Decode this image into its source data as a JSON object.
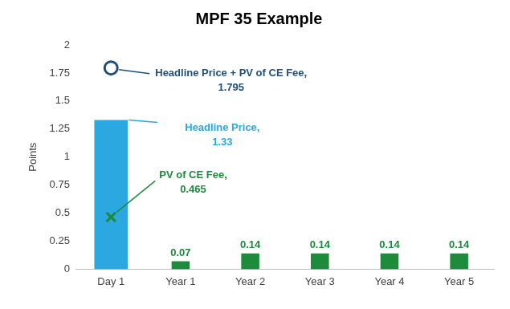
{
  "chart_data": {
    "type": "bar",
    "title": "MPF 35 Example",
    "y_label": "Points",
    "categories": [
      "Day 1",
      "Year 1",
      "Year 2",
      "Year 3",
      "Year 4",
      "Year 5"
    ],
    "values": [
      1.33,
      0.07,
      0.14,
      0.14,
      0.14,
      0.14
    ],
    "colors": [
      "#2ba8e0",
      "#1e8a3c",
      "#1e8a3c",
      "#1e8a3c",
      "#1e8a3c",
      "#1e8a3c"
    ],
    "ylim": [
      0,
      2
    ],
    "yticks": [
      0,
      0.25,
      0.5,
      0.75,
      1,
      1.25,
      1.5,
      1.75,
      2
    ],
    "grid": false,
    "data_labels": true,
    "value_labels": [
      null,
      "0.07",
      "0.14",
      "0.14",
      "0.14",
      "0.14"
    ],
    "annotations": [
      {
        "text": "Headline Price, 1.33",
        "category": "Day 1",
        "value": 1.33,
        "color": "#2ba8e0"
      },
      {
        "text": "PV of CE Fee, 0.465",
        "category": "Day 1",
        "value": 0.465,
        "color": "#1e8a3c",
        "marker": "x"
      },
      {
        "text": "Headline Price + PV of CE Fee, 1.795",
        "category": "Day 1",
        "value": 1.795,
        "color": "#1f4e79",
        "marker": "circle"
      }
    ]
  }
}
